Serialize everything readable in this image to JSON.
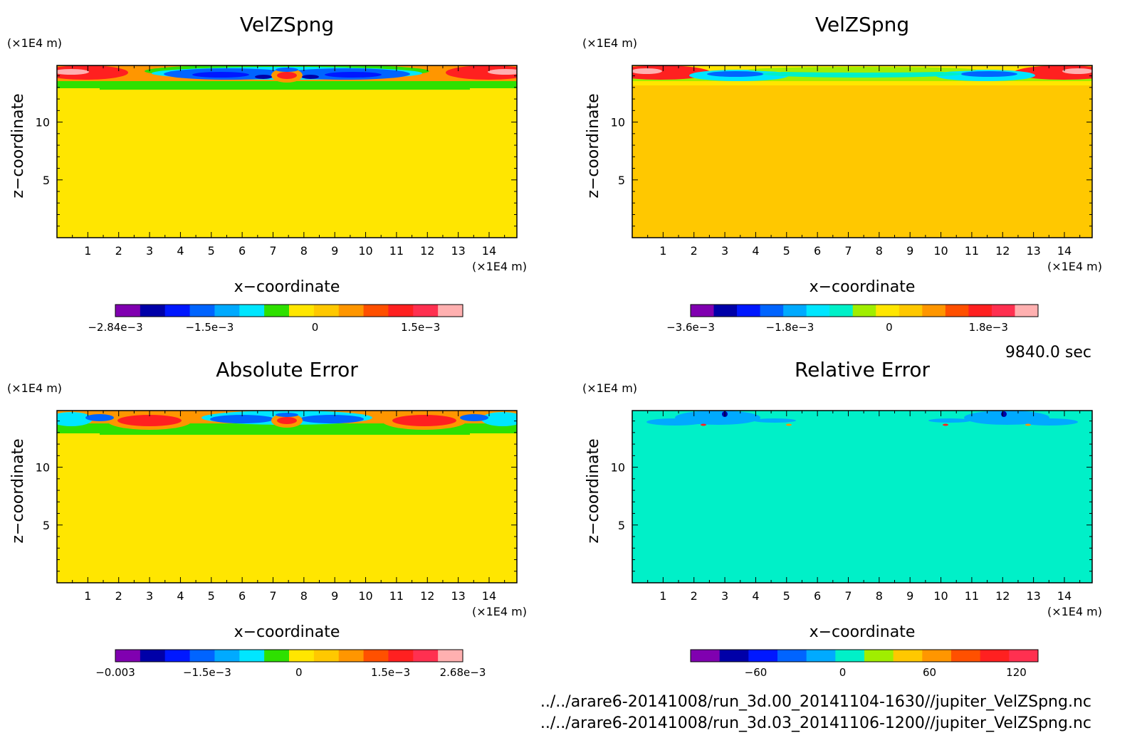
{
  "time_label": "9840.0 sec",
  "files": [
    "../../arare6-20141008/run_3d.00_20141104-1630//jupiter_VelZSpng.nc",
    "../../arare6-20141008/run_3d.03_20141106-1200//jupiter_VelZSpng.nc"
  ],
  "chart_data": [
    {
      "type": "heatmap",
      "title": "VelZSpng",
      "xlabel": "x−coordinate",
      "ylabel": "z−coordinate",
      "x_unit": "(×1E4 m)",
      "y_unit": "(×1E4 m)",
      "xlim": [
        0,
        14.9
      ],
      "ylim": [
        0,
        14.9
      ],
      "xticks": [
        1,
        2,
        3,
        4,
        5,
        6,
        7,
        8,
        9,
        10,
        11,
        12,
        13,
        14
      ],
      "yticks": [
        5,
        10
      ],
      "background_color": "#ffe600",
      "colorbar": {
        "colors": [
          "#8000b0",
          "#0000a8",
          "#0018ff",
          "#0064ff",
          "#00aaff",
          "#00e6ff",
          "#2ee000",
          "#ffe600",
          "#ffc800",
          "#ff9600",
          "#ff5000",
          "#ff2020",
          "#ff3050",
          "#ffb0b0"
        ],
        "labels": [
          {
            "text": "−2.84e−3",
            "value": -0.00284
          },
          {
            "text": "−1.5e−3",
            "value": -0.0015
          },
          {
            "text": "0",
            "value": 0
          },
          {
            "text": "1.5e−3",
            "value": 0.0015
          }
        ],
        "vmin": -0.00284,
        "vmax": 0.0021
      }
    },
    {
      "type": "heatmap",
      "title": "VelZSpng",
      "xlabel": "x−coordinate",
      "ylabel": "z−coordinate",
      "x_unit": "(×1E4 m)",
      "y_unit": "(×1E4 m)",
      "xlim": [
        0,
        14.9
      ],
      "ylim": [
        0,
        14.9
      ],
      "xticks": [
        1,
        2,
        3,
        4,
        5,
        6,
        7,
        8,
        9,
        10,
        11,
        12,
        13,
        14
      ],
      "yticks": [
        5,
        10
      ],
      "background_color": "#ffc800",
      "colorbar": {
        "colors": [
          "#8000b0",
          "#0000a8",
          "#0018ff",
          "#0064ff",
          "#00aaff",
          "#00e6ff",
          "#00f0c8",
          "#a0ee00",
          "#ffe600",
          "#ffc800",
          "#ff9600",
          "#ff5000",
          "#ff2020",
          "#ff3050",
          "#ffb0b0"
        ],
        "labels": [
          {
            "text": "−3.6e−3",
            "value": -0.0036
          },
          {
            "text": "−1.8e−3",
            "value": -0.0018
          },
          {
            "text": "0",
            "value": 0
          },
          {
            "text": "1.8e−3",
            "value": 0.0018
          }
        ],
        "vmin": -0.0036,
        "vmax": 0.0027
      }
    },
    {
      "type": "heatmap",
      "title": "Absolute Error",
      "xlabel": "x−coordinate",
      "ylabel": "z−coordinate",
      "x_unit": "(×1E4 m)",
      "y_unit": "(×1E4 m)",
      "xlim": [
        0,
        14.9
      ],
      "ylim": [
        0,
        14.9
      ],
      "xticks": [
        1,
        2,
        3,
        4,
        5,
        6,
        7,
        8,
        9,
        10,
        11,
        12,
        13,
        14
      ],
      "yticks": [
        5,
        10
      ],
      "background_color": "#ffe600",
      "colorbar": {
        "colors": [
          "#8000b0",
          "#0000a8",
          "#0018ff",
          "#0064ff",
          "#00aaff",
          "#00e6ff",
          "#2ee000",
          "#ffe600",
          "#ffc800",
          "#ff9600",
          "#ff5000",
          "#ff2020",
          "#ff3050",
          "#ffb0b0"
        ],
        "labels": [
          {
            "text": "−0.003",
            "value": -0.003
          },
          {
            "text": "−1.5e−3",
            "value": -0.0015
          },
          {
            "text": "0",
            "value": 0
          },
          {
            "text": "1.5e−3",
            "value": 0.0015
          },
          {
            "text": "2.68e−3",
            "value": 0.00268
          }
        ],
        "vmin": -0.003,
        "vmax": 0.00268
      }
    },
    {
      "type": "heatmap",
      "title": "Relative Error",
      "xlabel": "x−coordinate",
      "ylabel": "z−coordinate",
      "x_unit": "(×1E4 m)",
      "y_unit": "(×1E4 m)",
      "xlim": [
        0,
        14.9
      ],
      "ylim": [
        0,
        14.9
      ],
      "xticks": [
        1,
        2,
        3,
        4,
        5,
        6,
        7,
        8,
        9,
        10,
        11,
        12,
        13,
        14
      ],
      "yticks": [
        5,
        10
      ],
      "background_color": "#00f0c8",
      "colorbar": {
        "colors": [
          "#8000b0",
          "#0000a8",
          "#0018ff",
          "#0064ff",
          "#00aaff",
          "#00f0c8",
          "#a0ee00",
          "#ffc800",
          "#ff9600",
          "#ff5000",
          "#ff2020",
          "#ff3050"
        ],
        "labels": [
          {
            "text": "−60",
            "value": -60
          },
          {
            "text": "0",
            "value": 0
          },
          {
            "text": "60",
            "value": 60
          },
          {
            "text": "120",
            "value": 120
          }
        ],
        "vmin": -105,
        "vmax": 135
      }
    }
  ]
}
